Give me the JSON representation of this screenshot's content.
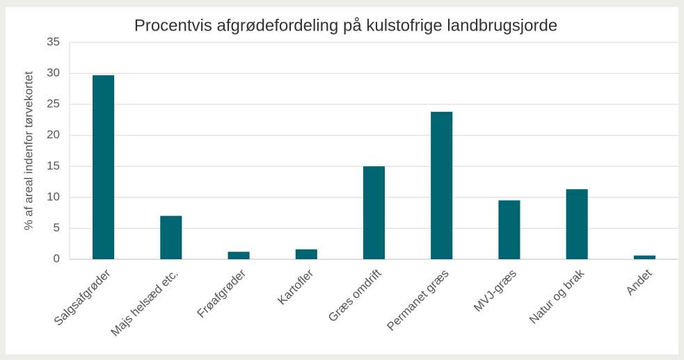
{
  "chart_data": {
    "type": "bar",
    "title": "Procentvis afgrødefordeling på kulstofrige landbrugsjorde",
    "y_label": "% af areal indenfor tørvekortet",
    "categories": [
      "Salgsafgrøder",
      "Majs helsæd etc.",
      "Frøafgrøder",
      "Kartofler",
      "Græs omdrift",
      "Permanet græs",
      "MVJ-græs",
      "Natur og brak",
      "Andet"
    ],
    "values": [
      29.7,
      7.0,
      1.2,
      1.6,
      15.0,
      23.8,
      9.5,
      11.3,
      0.6
    ],
    "color": "#006570",
    "ylim": [
      0,
      35
    ],
    "yticks": [
      0,
      5,
      10,
      15,
      20,
      25,
      30,
      35
    ],
    "grid": true
  }
}
